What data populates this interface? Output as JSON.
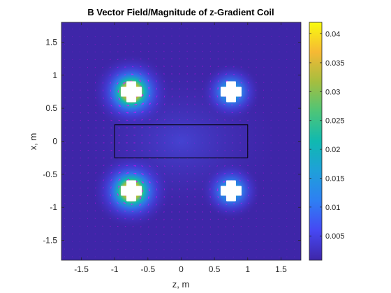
{
  "chart_data": {
    "type": "heatmap",
    "title": "B Vector Field/Magnitude of z-Gradient Coil",
    "xlabel": "z, m",
    "ylabel": "x, m",
    "xlim": [
      -1.8,
      1.8
    ],
    "ylim": [
      -1.8,
      1.8
    ],
    "xticks": [
      -1.5,
      -1,
      -0.5,
      0,
      0.5,
      1,
      1.5
    ],
    "xtick_labels": [
      "-1.5",
      "-1",
      "-0.5",
      "0",
      "0.5",
      "1",
      "1.5"
    ],
    "yticks": [
      1.5,
      1,
      0.5,
      0,
      -0.5,
      -1,
      -1.5
    ],
    "ytick_labels": [
      "1.5",
      "1",
      "0.5",
      "0",
      "-0.5",
      "-1",
      "-1.5"
    ],
    "colorbar": {
      "range": [
        0.0008,
        0.042
      ],
      "ticks": [
        0.04,
        0.035,
        0.03,
        0.025,
        0.02,
        0.015,
        0.01,
        0.005
      ],
      "tick_labels": [
        "0.04",
        "0.035",
        "0.03",
        "0.025",
        "0.02",
        "0.015",
        "0.01",
        "0.005"
      ],
      "colormap": "parula"
    },
    "coils": [
      {
        "z": -0.75,
        "x": 0.75,
        "strength": 1.6
      },
      {
        "z": 0.75,
        "x": 0.75,
        "strength": 1.0
      },
      {
        "z": -0.75,
        "x": -0.75,
        "strength": 1.6
      },
      {
        "z": 0.75,
        "x": -0.75,
        "strength": 1.0
      }
    ],
    "rectangle": {
      "z": [
        -1,
        1
      ],
      "x": [
        -0.25,
        0.25
      ]
    },
    "arrow_color": "#ff00ff",
    "region_border_color": "#000000"
  }
}
